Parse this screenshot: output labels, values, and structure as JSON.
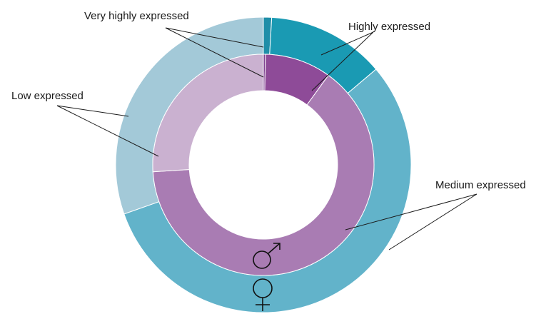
{
  "chart_data": {
    "type": "pie",
    "categories": [
      "Very highly expressed",
      "Highly expressed",
      "Medium expressed",
      "Low expressed"
    ],
    "series": [
      {
        "symbol": "♀",
        "values": [
          0.9,
          12.9,
          55.8,
          30.4
        ]
      },
      {
        "symbol": "♂",
        "values": [
          0.3,
          9.7,
          64.0,
          26.0
        ]
      }
    ],
    "colors": {
      "female": [
        "#1f8ea8",
        "#1a9ab3",
        "#62b3ca",
        "#a3c9d8"
      ],
      "male": [
        "#7e3f8f",
        "#8e4b98",
        "#a97cb3",
        "#cab1d0"
      ]
    },
    "title": "",
    "xlabel": "",
    "ylabel": ""
  }
}
